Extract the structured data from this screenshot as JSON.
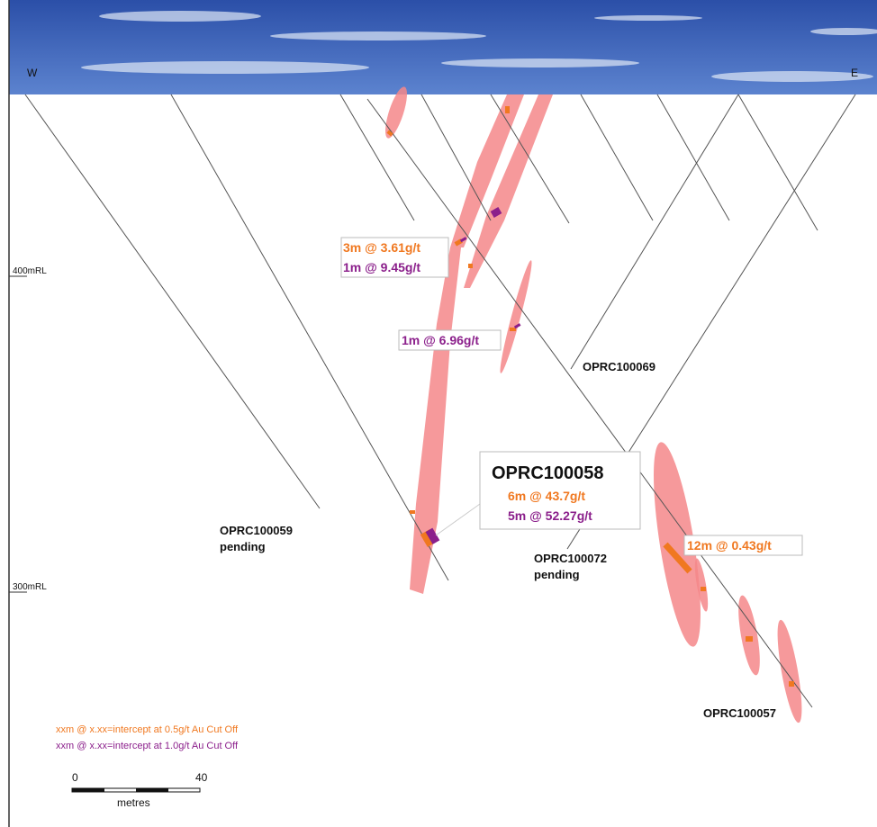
{
  "compass": {
    "west": "W",
    "east": "E"
  },
  "elevations": [
    "400mRL",
    "300mRL"
  ],
  "callouts": [
    {
      "lines": [
        "3m @ 3.61g/t",
        "1m @ 9.45g/t"
      ]
    },
    {
      "lines": [
        "1m @ 6.96g/t"
      ]
    },
    {
      "title": "OPRC100058",
      "lines": [
        "6m @ 43.7g/t",
        "5m @ 52.27g/t"
      ]
    },
    {
      "lines": [
        "12m @ 0.43g/t"
      ]
    }
  ],
  "holes": [
    {
      "name": "OPRC100069"
    },
    {
      "name": "OPRC100059",
      "status": "pending"
    },
    {
      "name": "OPRC100072",
      "status": "pending"
    },
    {
      "name": "OPRC100057"
    }
  ],
  "legend": [
    "xxm @ x.xx=intercept at 0.5g/t Au Cut Off",
    "xxm @ x.xx=intercept at 1.0g/t Au Cut Off"
  ],
  "scale": {
    "start": "0",
    "end": "40",
    "unit": "metres"
  }
}
